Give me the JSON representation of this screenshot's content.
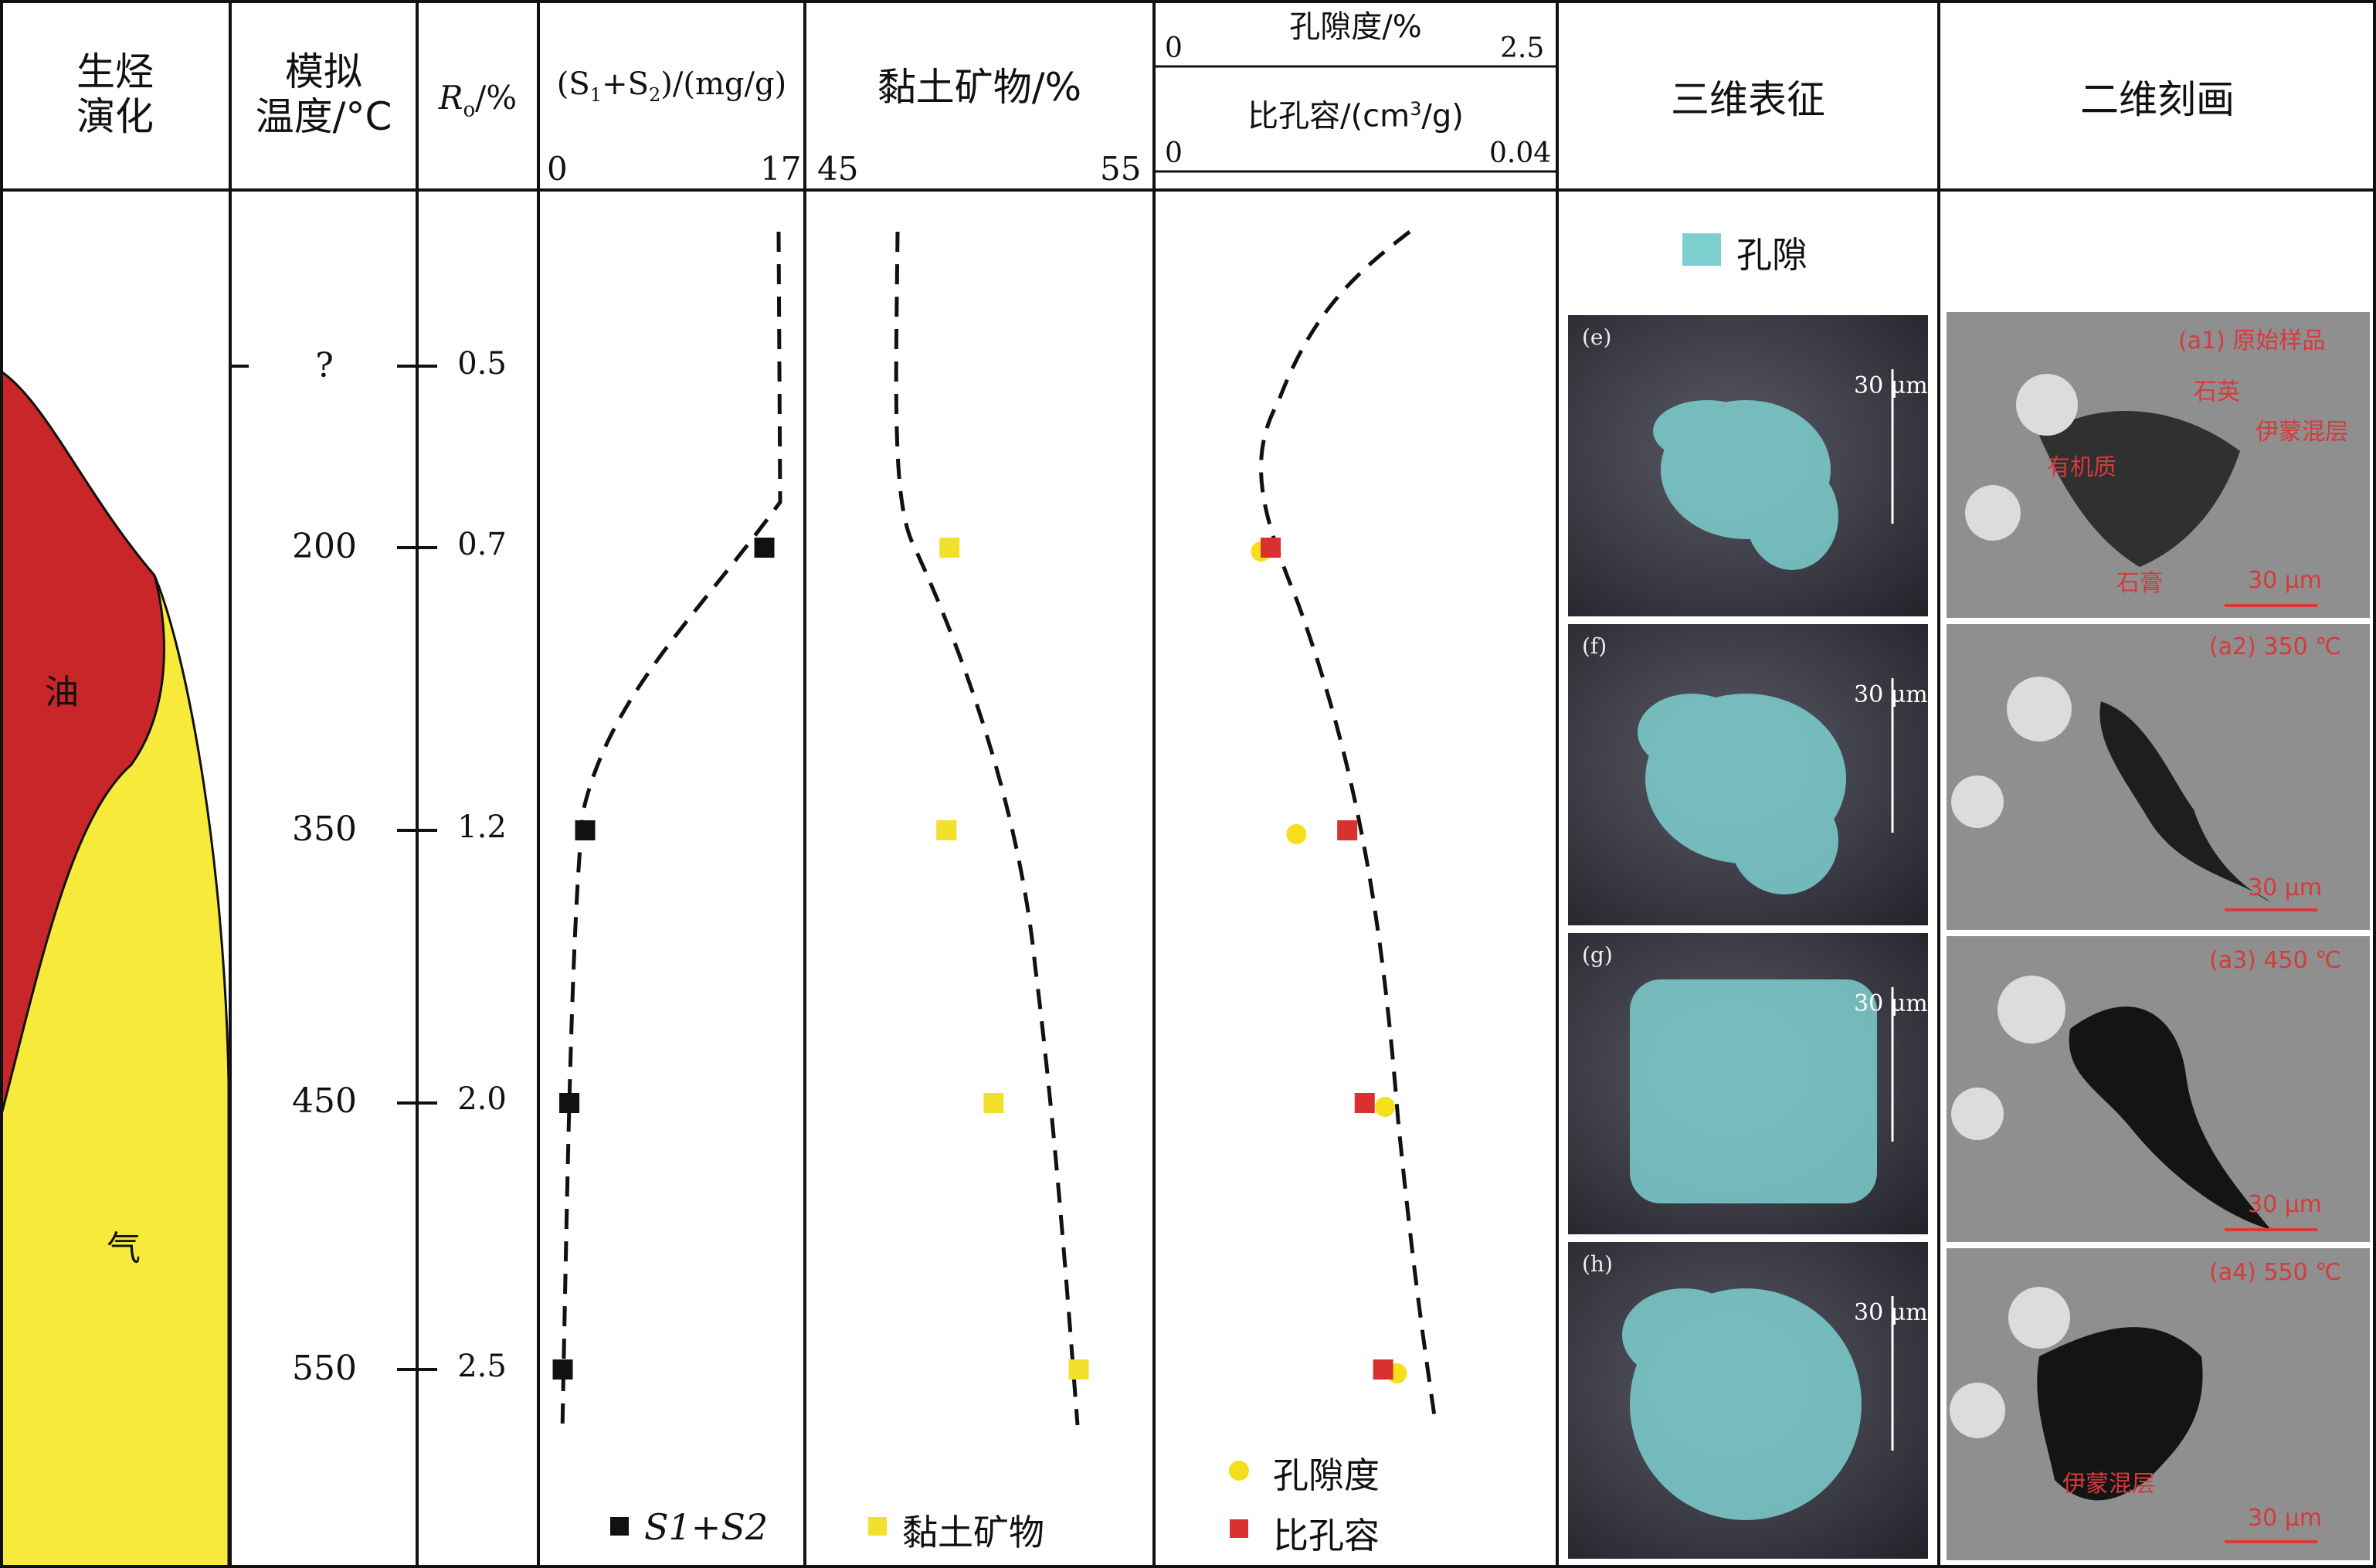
{
  "headers": {
    "hc_evolution": "生烃\n演化",
    "sim_temp": "模拟\n温度/°C",
    "ro": "R",
    "ro_sub": "o",
    "ro_unit": "/%",
    "s1s2_a": "(S",
    "s1s2_b": "1",
    "s1s2_c": "+S",
    "s1s2_d": "2",
    "s1s2_e": ")/(mg/g)",
    "clay": "黏土矿物/%",
    "porosity": "孔隙度/%",
    "spv": "比孔容/(cm",
    "spv_sup": "3",
    "spv_end": "/g)",
    "three_d": "三维表征",
    "two_d": "二维刻画"
  },
  "axis_ticks": {
    "s1s2_min": "0",
    "s1s2_max": "17",
    "clay_min": "45",
    "clay_max": "55",
    "por_min": "0",
    "por_max": "2.5",
    "spv_min": "0",
    "spv_max": "0.04"
  },
  "rows": [
    {
      "temp": "?",
      "ro": "0.5"
    },
    {
      "temp": "200",
      "ro": "0.7"
    },
    {
      "temp": "350",
      "ro": "1.2"
    },
    {
      "temp": "450",
      "ro": "2.0"
    },
    {
      "temp": "550",
      "ro": "2.5"
    }
  ],
  "evolution_labels": {
    "oil": "油",
    "gas": "气"
  },
  "legends": {
    "s1s2": "S1+S2",
    "clay": "黏土矿物",
    "porosity": "孔隙度",
    "spv": "比孔容",
    "pore": "孔隙"
  },
  "three_d_panels": [
    {
      "tag": "(e)",
      "scale": "30 μm"
    },
    {
      "tag": "(f)",
      "scale": "30 μm"
    },
    {
      "tag": "(g)",
      "scale": "30 μm"
    },
    {
      "tag": "(h)",
      "scale": "30 μm"
    }
  ],
  "two_d_panels": [
    {
      "tag": "(a1) 原始样品",
      "scale": "30 μm",
      "notes": [
        "石英",
        "伊蒙混层",
        "有机质",
        "石膏"
      ]
    },
    {
      "tag": "(a2) 350 ℃",
      "scale": "30 μm",
      "notes": []
    },
    {
      "tag": "(a3) 450 ℃",
      "scale": "30 μm",
      "notes": []
    },
    {
      "tag": "(a4) 550 ℃",
      "scale": "30 μm",
      "notes": [
        "伊蒙混层"
      ]
    }
  ],
  "colors": {
    "oil": "#c9262a",
    "gas": "#f7ea3a",
    "s1s2_marker": "#111111",
    "clay_marker": "#f2e02c",
    "porosity_marker": "#f4df1a",
    "spv_marker": "#d8312f",
    "pore_3d": "#7ecfcf"
  },
  "chart_data": [
    {
      "type": "scatter",
      "title": "(S1+S2)/(mg/g)",
      "xlim": [
        0,
        17
      ],
      "y_axis": "Ro/%",
      "series": [
        {
          "name": "S1+S2",
          "points": [
            [
              15.8,
              0.7
            ],
            [
              2.2,
              1.2
            ],
            [
              1.0,
              2.0
            ],
            [
              0.5,
              2.5
            ]
          ]
        }
      ]
    },
    {
      "type": "scatter",
      "title": "黏土矿物/%",
      "xlim": [
        45,
        55
      ],
      "series": [
        {
          "name": "黏土矿物",
          "points": [
            [
              49.1,
              0.7
            ],
            [
              49.0,
              1.2
            ],
            [
              50.5,
              2.0
            ],
            [
              53.2,
              2.5
            ]
          ]
        }
      ]
    },
    {
      "type": "scatter",
      "title": "孔隙度/% ; 比孔容/(cm3/g)",
      "xlim_porosity": [
        0,
        2.5
      ],
      "xlim_spv": [
        0,
        0.04
      ],
      "series": [
        {
          "name": "孔隙度",
          "points": [
            [
              0.63,
              0.7
            ],
            [
              0.87,
              1.2
            ],
            [
              1.47,
              2.0
            ],
            [
              1.55,
              2.5
            ]
          ]
        },
        {
          "name": "比孔容",
          "points": [
            [
              0.0106,
              0.7
            ],
            [
              0.0185,
              1.2
            ],
            [
              0.0203,
              2.0
            ],
            [
              0.0222,
              2.5
            ]
          ]
        }
      ]
    }
  ]
}
